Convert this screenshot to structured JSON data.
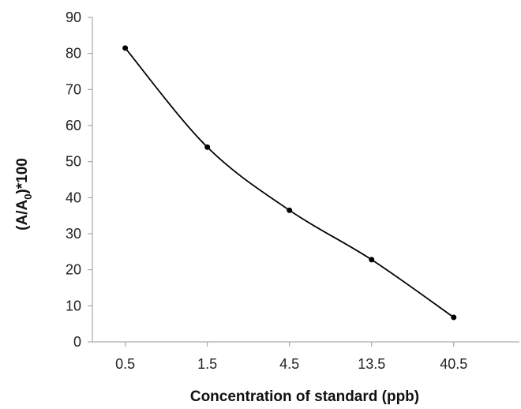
{
  "chart_data": {
    "type": "line",
    "title": "",
    "xlabel": "Concentration of standard (ppb)",
    "ylabel_main": "(A/A",
    "ylabel_sub": "0",
    "ylabel_end": ")*100",
    "categories": [
      "0.5",
      "1.5",
      "4.5",
      "13.5",
      "40.5"
    ],
    "series": [
      {
        "values": [
          81.5,
          54,
          36.5,
          22.8,
          6.8
        ]
      }
    ],
    "ylim": [
      0,
      90
    ],
    "yticks": [
      0,
      10,
      20,
      30,
      40,
      50,
      60,
      70,
      80,
      90
    ],
    "grid": false,
    "legend": false,
    "line_style": "smoothed",
    "marker": "circle",
    "color": "#000000"
  }
}
